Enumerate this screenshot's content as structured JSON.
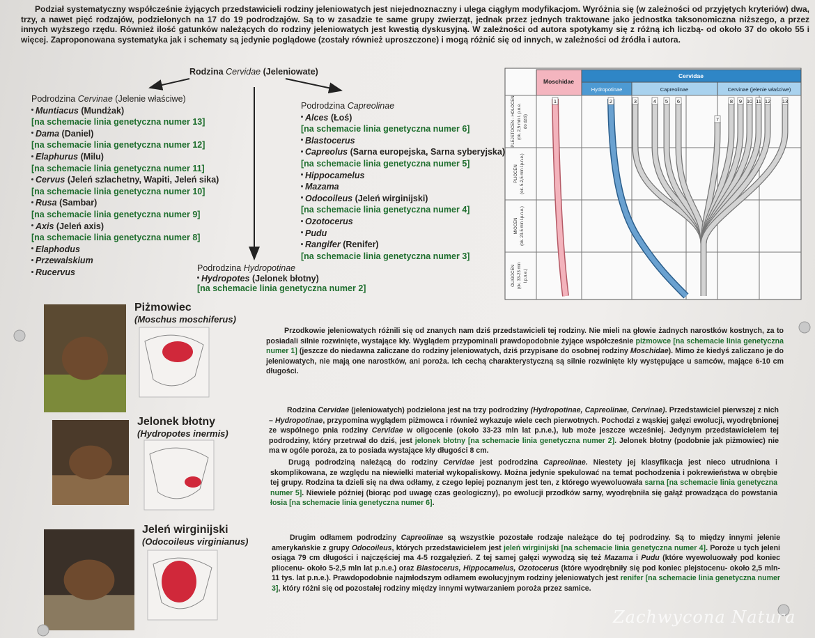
{
  "intro": "Podział systematyczny współcześnie żyjących przedstawicieli rodziny jeleniowatych jest niejednoznaczny i ulega ciągłym modyfikacjom. Wyróżnia się (w zależności od przyjętych kryteriów) dwa, trzy, a nawet pięć rodzajów, podzielonych na 17 do 19 podrodzajów. Są to w zasadzie te same grupy zwierząt, jednak przez jednych traktowane jako jednostka taksonomiczna niższego, a przez innych wyższego rzędu. Również ilość gatunków należących do rodziny jeleniowatych jest kwestią dyskusyjną. W zależności od autora spotykamy się z różną ich liczbą- od około 37 do około 55 i więcej. Zaproponowana systematyka jak i schematy są jedynie poglądowe (zostały również uproszczone) i mogą różnić się od innych, w zależności od źródła i autora.",
  "taxonomy": {
    "root": {
      "prefix": "Rodzina",
      "latin": "Cervidae",
      "common": "(Jeleniowate)"
    },
    "subfamilies": [
      {
        "prefix": "Podrodzina",
        "latin": "Cervinae",
        "common": "(Jelenie właściwe)",
        "genera": [
          {
            "name": "Muntiacus",
            "common": "(Mundżak)",
            "line": "[na schemacie linia genetyczna numer 13]"
          },
          {
            "name": "Dama",
            "common": "(Daniel)",
            "line": "[na schemacie linia genetyczna numer 12]"
          },
          {
            "name": "Elaphurus",
            "common": "(Milu)",
            "line": "[na schemacie linia genetyczna numer 11]"
          },
          {
            "name": "Cervus",
            "common": "(Jeleń szlachetny, Wapiti, Jeleń sika)",
            "line": "[na schemacie linia genetyczna numer 10]"
          },
          {
            "name": "Rusa",
            "common": "(Sambar)",
            "line": "[na schemacie linia genetyczna numer 9]"
          },
          {
            "name": "Axis",
            "common": "(Jeleń axis)",
            "line": "[na schemacie linia genetyczna numer 8]"
          },
          {
            "name": "Elaphodus"
          },
          {
            "name": "Przewalskium"
          },
          {
            "name": "Rucervus"
          }
        ]
      },
      {
        "prefix": "Podrodzina",
        "latin": "Capreolinae",
        "genera": [
          {
            "name": "Alces",
            "common": "(Łoś)",
            "line": "[na schemacie linia genetyczna numer 6]"
          },
          {
            "name": "Blastocerus"
          },
          {
            "name": "Capreolus",
            "common": "(Sarna europejska, Sarna syberyjska)",
            "line": "[na schemacie linia genetyczna numer 5]"
          },
          {
            "name": "Hippocamelus"
          },
          {
            "name": "Mazama"
          },
          {
            "name": "Odocoileus",
            "common": "(Jeleń wirginijski)",
            "line": "[na schemacie linia genetyczna numer 4]"
          },
          {
            "name": "Ozotocerus"
          },
          {
            "name": "Pudu"
          },
          {
            "name": "Rangifer",
            "common": "(Renifer)",
            "line": "[na schemacie linia genetyczna numer 3]"
          }
        ]
      },
      {
        "prefix": "Podrodzina",
        "latin": "Hydropotinae",
        "genera": [
          {
            "name": "Hydropotes",
            "common": "(Jelonek błotny)",
            "line": "[na schemacie linia genetyczna numer 2]"
          }
        ]
      }
    ]
  },
  "diagram": {
    "families": [
      "Moschidae",
      "Cervidae"
    ],
    "subfamilies": [
      "Hydropotinae",
      "Capreolinae",
      "Cervinae (jelenie właściwe)"
    ],
    "epochs": [
      [
        "PLEJSTOCEN - HOLOCEN",
        "(ok. 2,5 mln l. p.n.e.",
        "do dziś)"
      ],
      [
        "PLIOCEN",
        "(ok. 5-2,5 mln l.p.n.e.)"
      ],
      [
        "MIOCEN",
        "(ok. 23-5 mln l.p.n.e.)"
      ],
      [
        "OLIGOCEN",
        "(ok. 33-23 mln",
        "l.p.n.e.)"
      ]
    ],
    "lineages": [
      1,
      2,
      3,
      4,
      5,
      6,
      7,
      8,
      9,
      10,
      11,
      12,
      13
    ]
  },
  "species": [
    {
      "name": "Piżmowiec",
      "latin": "(Moschus moschiferus)"
    },
    {
      "name": "Jelonek błotny",
      "latin": "(Hydropotes inermis)"
    },
    {
      "name": "Jeleń wirginijski",
      "latin": "(Odocoileus virginianus)"
    }
  ],
  "paragraphs": [
    [
      {
        "t": "Przodkowie jeleniowatych różnili się od znanych nam dziś przedstawicieli tej rodziny. Nie mieli na głowie żadnych narostków kostnych, za to posiadali silnie rozwinięte, wystające kły. Wyglądem przypominali prawdopodobnie żyjące współcześnie "
      },
      {
        "g": "piżmowce [na schemacie linia genetyczna numer 1]"
      },
      {
        "t": " (jeszcze do niedawna zaliczane do rodziny jeleniowatych, dziś przypisane do osobnej rodziny "
      },
      {
        "i": "Moschidae"
      },
      {
        "t": "). Mimo że kiedyś zaliczano je do jeleniowatych, nie mają one narostków, ani poroża. Ich cechą charakterystyczną są silnie rozwinięte kły występujące u samców, mające 6-10 cm długości."
      }
    ],
    [
      {
        "t": "Rodzina "
      },
      {
        "i": "Cervidae"
      },
      {
        "t": " (jeleniowatych) podzielona jest na trzy podrodziny "
      },
      {
        "i": "(Hydropotinae, Capreolinae, Cervinae)"
      },
      {
        "t": ". Przedstawiciel pierwszej z nich – "
      },
      {
        "i": "Hydropotinae"
      },
      {
        "t": ", przypomina wyglądem piżmowca i również wykazuje wiele cech pierwotnych. Pochodzi z wąskiej gałęzi ewolucji, wyodrębnionej ze wspólnego pnia rodziny "
      },
      {
        "i": "Cervidae"
      },
      {
        "t": " w oligocenie (około 33-23 mln lat p.n.e.), lub może jeszcze wcześniej. Jedynym przedstawicielem tej podrodziny, który przetrwał do dziś, jest "
      },
      {
        "g": "jelonek błotny [na schemacie linia genetyczna numer 2]"
      },
      {
        "t": ". Jelonek błotny (podobnie jak piżmowiec) nie ma w ogóle poroża, za to posiada wystające kły długości 8 cm."
      }
    ],
    [
      {
        "t": "Drugą podrodziną należącą do rodziny "
      },
      {
        "i": "Cervidae"
      },
      {
        "t": " jest podrodzina "
      },
      {
        "i": "Capreolinae"
      },
      {
        "t": ". Niestety jej klasyfikacja jest nieco utrudniona i skomplikowana, ze względu na niewielki materiał wykopaliskowy. Można jedynie spekulować na temat pochodzenia i pokrewieństwa w obrębie tej grupy. Rodzina ta dzieli się na dwa odłamy, z czego lepiej poznanym jest ten, z którego wyewoluowała "
      },
      {
        "g": "sarna [na schemacie linia genetyczna numer 5]"
      },
      {
        "t": ". Niewiele później (biorąc pod uwagę czas geologiczny), po ewolucji przodków sarny, wyodrębniła się gałąź prowadząca do powstania "
      },
      {
        "g": "łosia [na schemacie linia genetyczna numer 6]"
      },
      {
        "t": "."
      }
    ],
    [
      {
        "t": "Drugim odłamem podrodziny "
      },
      {
        "i": "Capreolinae"
      },
      {
        "t": " są wszystkie pozostałe rodzaje należące do tej podrodziny. Są to między innymi jelenie amerykańskie z grupy "
      },
      {
        "i": "Odocoileus"
      },
      {
        "t": ", których przedstawicielem jest "
      },
      {
        "g": "jeleń wirginijski [na schemacie linia genetyczna numer 4]"
      },
      {
        "t": ". Poroże u tych jeleni osiąga 79 cm długości i najczęściej ma 4-5 rozgałęzień. Z tej samej gałęzi wywodzą się też "
      },
      {
        "i": "Mazama"
      },
      {
        "t": " i "
      },
      {
        "i": "Pudu"
      },
      {
        "t": " (które wyewoluowały pod koniec pliocenu- około 5-2,5 mln lat p.n.e.) oraz "
      },
      {
        "i": "Blastocerus, Hippocamelus, Ozotocerus"
      },
      {
        "t": " (które wyodrębniły się pod koniec plejstocenu- około 2,5 mln-11 tys. lat p.n.e.). Prawdopodobnie najmłodszym odłamem ewolucyjnym rodziny jeleniowatych jest "
      },
      {
        "g": "renifer [na schemacie linia genetyczna numer 3]"
      },
      {
        "t": ", który różni się od pozostałej rodziny między innymi wytwarzaniem poroża przez samice."
      }
    ]
  ],
  "watermark": "Zachwycona Natura"
}
